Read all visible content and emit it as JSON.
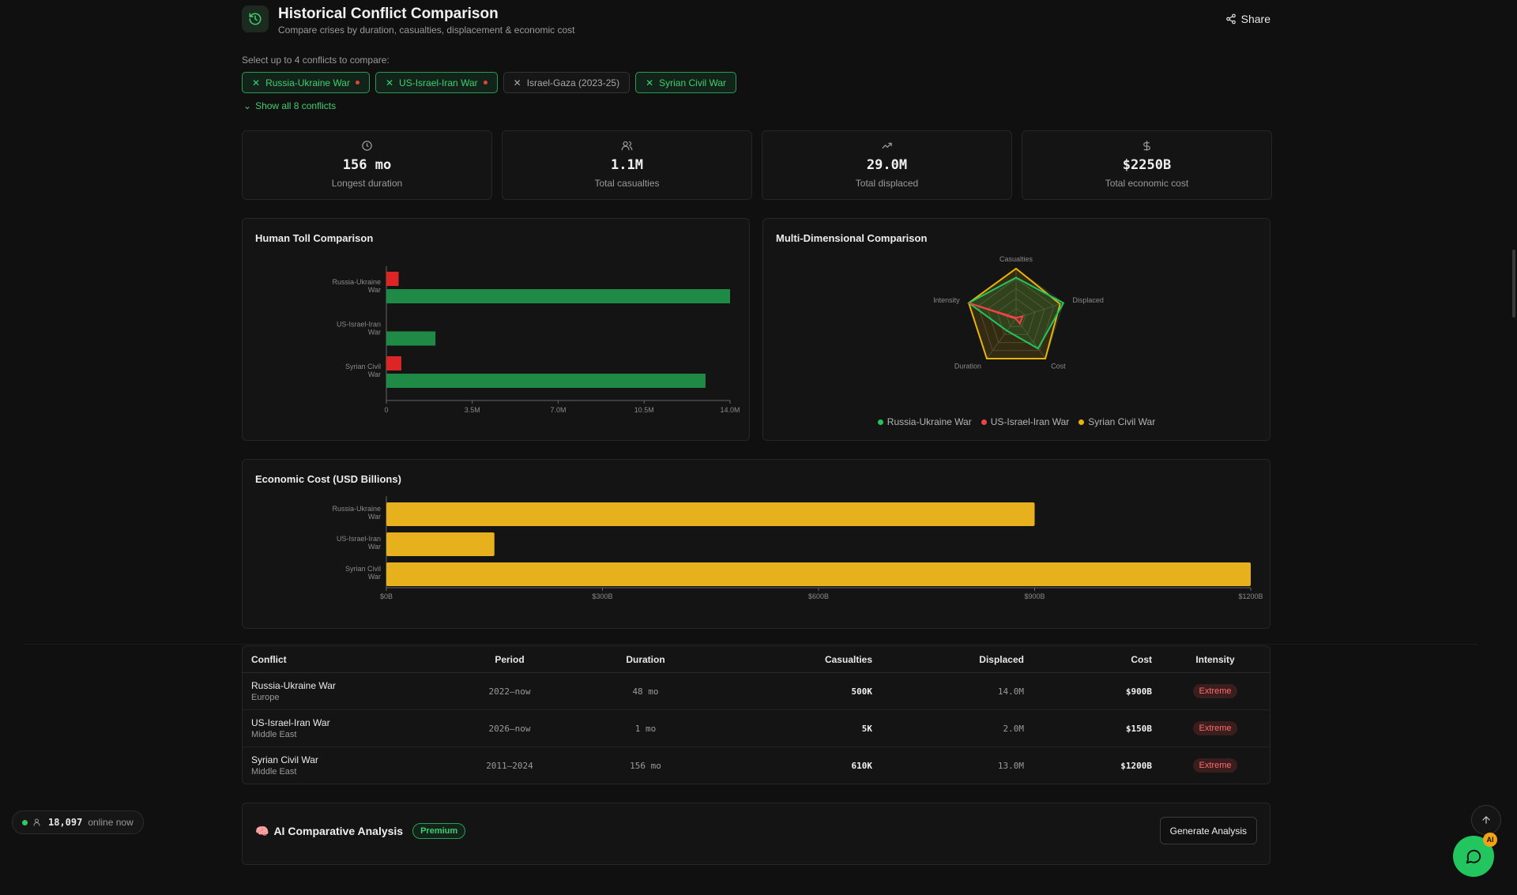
{
  "header": {
    "title": "Historical Conflict Comparison",
    "subtitle": "Compare crises by duration, casualties, displacement & economic cost",
    "share_label": "Share"
  },
  "selector": {
    "label": "Select up to 4 conflicts to compare:",
    "chips": [
      {
        "label": "Russia-Ukraine War",
        "selected": true,
        "live": true
      },
      {
        "label": "US-Israel-Iran War",
        "selected": true,
        "live": true
      },
      {
        "label": "Israel-Gaza (2023-25)",
        "selected": false,
        "live": false
      },
      {
        "label": "Syrian Civil War",
        "selected": true,
        "live": false
      }
    ],
    "show_all": "Show all 8 conflicts"
  },
  "stats": [
    {
      "icon": "clock-icon",
      "value": "156 mo",
      "label": "Longest duration"
    },
    {
      "icon": "users-icon",
      "value": "1.1M",
      "label": "Total casualties"
    },
    {
      "icon": "trending-up-icon",
      "value": "29.0M",
      "label": "Total displaced"
    },
    {
      "icon": "dollar-icon",
      "value": "$2250B",
      "label": "Total economic cost"
    }
  ],
  "colors": {
    "casualties": "#dc2626",
    "displaced": "#1f8a45",
    "cost": "#e6b11c",
    "russia": "#22c55e",
    "iran": "#ef4444",
    "syria": "#eab308"
  },
  "chart_data": [
    {
      "type": "bar",
      "title": "Human Toll Comparison",
      "orientation": "horizontal",
      "categories": [
        [
          "Russia-Ukraine",
          "War"
        ],
        [
          "US-Israel-Iran",
          "War"
        ],
        [
          "Syrian Civil",
          "War"
        ]
      ],
      "series": [
        {
          "values": [
            500000,
            5000,
            610000
          ]
        },
        {
          "values": [
            14000000,
            2000000,
            13000000
          ]
        }
      ],
      "xlim": [
        0,
        14000000
      ],
      "ticks": [
        0,
        3500000,
        7000000,
        10500000,
        14000000
      ],
      "tick_labels": [
        "0",
        "3.5M",
        "7.0M",
        "10.5M",
        "14.0M"
      ]
    },
    {
      "type": "radar",
      "title": "Multi-Dimensional Comparison",
      "axes": [
        "Casualties",
        "Displaced",
        "Cost",
        "Duration",
        "Intensity"
      ],
      "series": [
        {
          "name": "Russia-Ukraine War",
          "values": [
            0.82,
            1.0,
            0.75,
            0.31,
            1.0
          ]
        },
        {
          "name": "US-Israel-Iran War",
          "values": [
            0.01,
            0.14,
            0.13,
            0.01,
            1.0
          ]
        },
        {
          "name": "Syrian Civil War",
          "values": [
            1.0,
            0.93,
            1.0,
            1.0,
            1.0
          ]
        }
      ],
      "rlim": [
        0,
        1
      ],
      "legend": "bottom"
    },
    {
      "type": "bar",
      "title": "Economic Cost (USD Billions)",
      "orientation": "horizontal",
      "categories": [
        [
          "Russia-Ukraine",
          "War"
        ],
        [
          "US-Israel-Iran",
          "War"
        ],
        [
          "Syrian Civil",
          "War"
        ]
      ],
      "values": [
        900,
        150,
        1200
      ],
      "xlim": [
        0,
        1200
      ],
      "ticks": [
        0,
        300,
        600,
        900,
        1200
      ],
      "tick_labels": [
        "$0B",
        "$300B",
        "$600B",
        "$900B",
        "$1200B"
      ]
    }
  ],
  "table": {
    "headers": [
      "Conflict",
      "Period",
      "Duration",
      "Casualties",
      "Displaced",
      "Cost",
      "Intensity"
    ],
    "rows": [
      {
        "name": "Russia-Ukraine War",
        "region": "Europe",
        "period": "2022–now",
        "duration": "48 mo",
        "casualties": "500K",
        "displaced": "14.0M",
        "cost": "$900B",
        "intensity": "Extreme"
      },
      {
        "name": "US-Israel-Iran War",
        "region": "Middle East",
        "period": "2026–now",
        "duration": "1 mo",
        "casualties": "5K",
        "displaced": "2.0M",
        "cost": "$150B",
        "intensity": "Extreme"
      },
      {
        "name": "Syrian Civil War",
        "region": "Middle East",
        "period": "2011–2024",
        "duration": "156 mo",
        "casualties": "610K",
        "displaced": "13.0M",
        "cost": "$1200B",
        "intensity": "Extreme"
      }
    ]
  },
  "ai_analysis": {
    "emoji": "🧠",
    "title": "AI Comparative Analysis",
    "badge": "Premium",
    "button": "Generate Analysis"
  },
  "online": {
    "count": "18,097",
    "label": "online now"
  },
  "chat_badge": "AI"
}
